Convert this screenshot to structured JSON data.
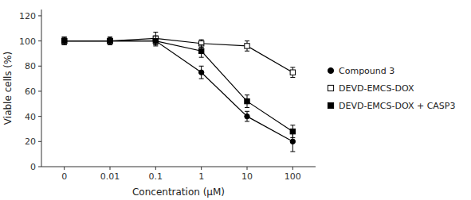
{
  "chart_data": {
    "type": "line",
    "xlabel": "Concentration (μM)",
    "ylabel": "Viable cells (%)",
    "categories": [
      "0",
      "0.01",
      "0.1",
      "1",
      "10",
      "100"
    ],
    "series": [
      {
        "name": "Compound 3",
        "color": "#000000",
        "marker": "circle",
        "values": [
          100,
          100,
          100,
          75,
          40,
          20
        ],
        "errors": [
          3,
          3,
          3,
          5,
          4,
          8
        ]
      },
      {
        "name": "DEVD-EMCS-DOX",
        "color": "#000000",
        "marker": "square-open",
        "values": [
          100,
          100,
          102,
          98,
          96,
          75
        ],
        "errors": [
          3,
          3,
          5,
          3,
          4,
          4
        ]
      },
      {
        "name": "DEVD-EMCS-DOX + CASP3",
        "color": "#000000",
        "marker": "square",
        "values": [
          100,
          100,
          100,
          92,
          52,
          28
        ],
        "errors": [
          3,
          3,
          4,
          5,
          5,
          5
        ]
      }
    ],
    "ylim": [
      0,
      125
    ],
    "yticks": [
      0,
      20,
      40,
      60,
      80,
      100,
      120
    ],
    "grid": false,
    "legend": "right"
  }
}
